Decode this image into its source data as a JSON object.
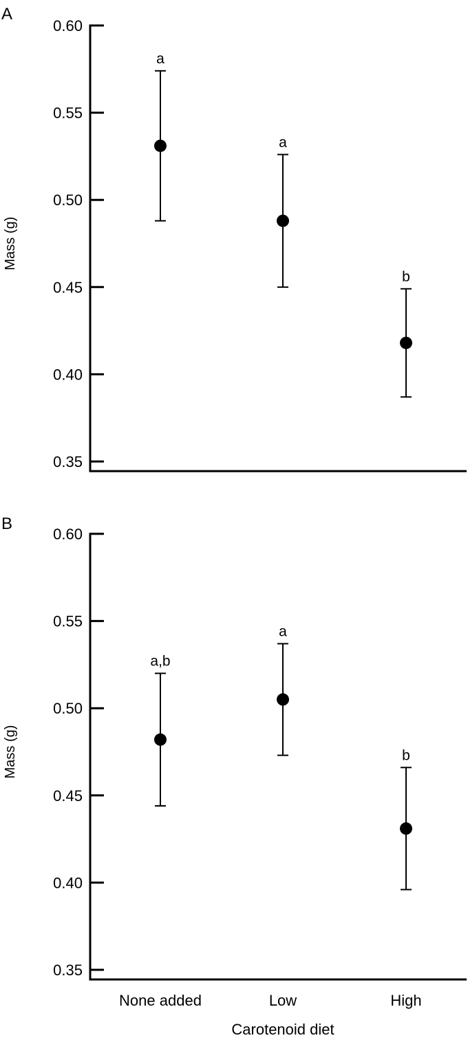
{
  "chart_data": [
    {
      "type": "scatter",
      "panel_label": "A",
      "categories": [
        "None added",
        "Low",
        "High"
      ],
      "values": [
        0.531,
        0.488,
        0.418
      ],
      "error_low": [
        0.488,
        0.45,
        0.387
      ],
      "error_high": [
        0.574,
        0.526,
        0.449
      ],
      "significance_labels": [
        "a",
        "a",
        "b"
      ],
      "ylabel": "Mass (g)",
      "xlabel": "",
      "ylim": [
        0.35,
        0.6
      ],
      "yticks": [
        "0.60",
        "0.55",
        "0.50",
        "0.45",
        "0.40",
        "0.35"
      ],
      "show_xtick_labels": false,
      "grid": false,
      "color": "#000000"
    },
    {
      "type": "scatter",
      "panel_label": "B",
      "categories": [
        "None added",
        "Low",
        "High"
      ],
      "values": [
        0.482,
        0.505,
        0.431
      ],
      "error_low": [
        0.444,
        0.473,
        0.396
      ],
      "error_high": [
        0.52,
        0.537,
        0.466
      ],
      "significance_labels": [
        "a,b",
        "a",
        "b"
      ],
      "ylabel": "Mass (g)",
      "xlabel": "Carotenoid diet",
      "ylim": [
        0.35,
        0.6
      ],
      "yticks": [
        "0.60",
        "0.55",
        "0.50",
        "0.45",
        "0.40",
        "0.35"
      ],
      "show_xtick_labels": true,
      "grid": false,
      "color": "#000000"
    }
  ]
}
